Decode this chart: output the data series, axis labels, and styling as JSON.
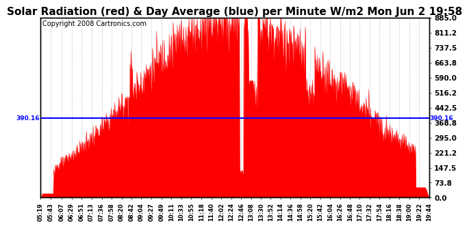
{
  "title": "Solar Radiation (red) & Day Average (blue) per Minute W/m2 Mon Jun 2 19:58",
  "copyright": "Copyright 2008 Cartronics.com",
  "day_average": 390.16,
  "y_max": 885.0,
  "y_min": 0.0,
  "y_ticks": [
    0.0,
    73.8,
    147.5,
    221.2,
    295.0,
    368.8,
    442.5,
    516.2,
    590.0,
    663.8,
    737.5,
    811.2,
    885.0
  ],
  "fill_color": "red",
  "line_color": "blue",
  "grid_color": "#bbbbbb",
  "background_color": "white",
  "title_fontsize": 11,
  "copyright_fontsize": 7,
  "x_tick_labels": [
    "05:19",
    "05:43",
    "06:07",
    "06:29",
    "06:51",
    "07:13",
    "07:36",
    "07:58",
    "08:20",
    "08:42",
    "09:04",
    "09:27",
    "09:49",
    "10:11",
    "10:33",
    "10:55",
    "11:18",
    "11:40",
    "12:02",
    "12:24",
    "12:46",
    "13:08",
    "13:30",
    "13:52",
    "14:14",
    "14:36",
    "14:58",
    "15:20",
    "15:42",
    "16:04",
    "16:26",
    "16:48",
    "17:10",
    "17:32",
    "17:54",
    "18:16",
    "18:38",
    "19:00",
    "19:22",
    "19:44"
  ]
}
